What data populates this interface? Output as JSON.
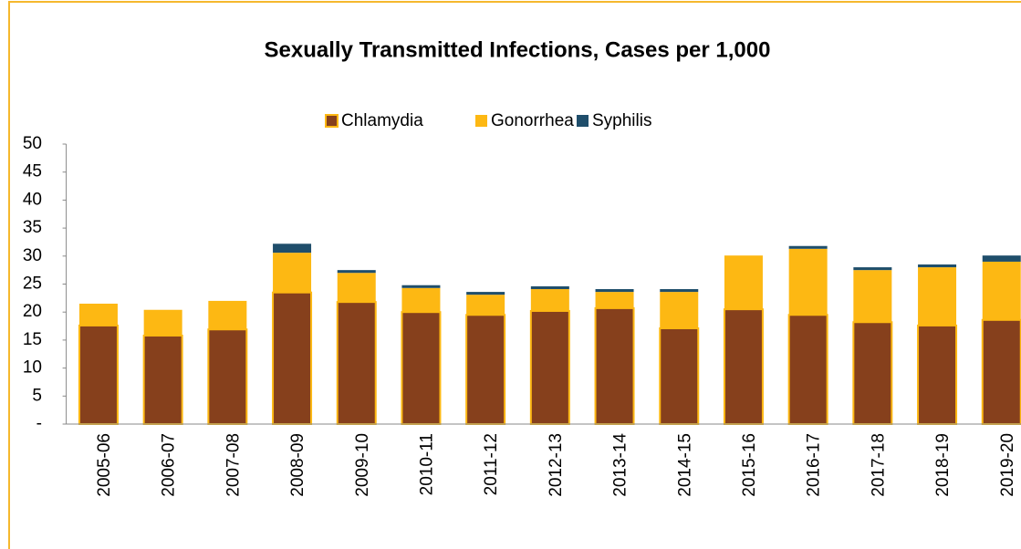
{
  "chart_data": {
    "type": "stacked_bar",
    "title": "Sexually Transmitted Infections, Cases per 1,000",
    "categories": [
      "2005-06",
      "2006-07",
      "2007-08",
      "2008-09",
      "2009-10",
      "2010-11",
      "2011-12",
      "2012-13",
      "2013-14",
      "2014-15",
      "2015-16",
      "2016-17",
      "2017-18",
      "2018-19",
      "2019-20"
    ],
    "series": [
      {
        "name": "Chlamydia",
        "color": "#86401c",
        "values": [
          17.6,
          15.8,
          16.9,
          23.5,
          21.8,
          20.0,
          19.5,
          20.2,
          20.7,
          17.1,
          20.5,
          19.5,
          18.2,
          17.6,
          18.6
        ]
      },
      {
        "name": "Gonorrhea",
        "color": "#fdb813",
        "values": [
          3.9,
          4.6,
          5.1,
          7.1,
          5.2,
          4.3,
          3.6,
          3.9,
          2.9,
          6.5,
          9.6,
          11.8,
          9.3,
          10.4,
          10.4
        ]
      },
      {
        "name": "Syphilis",
        "color": "#1f4e6b",
        "values": [
          0,
          0,
          0,
          1.6,
          0.5,
          0.5,
          0.5,
          0.5,
          0.5,
          0.5,
          0,
          0.5,
          0.5,
          0.5,
          1.1
        ]
      }
    ],
    "ylim": [
      0,
      50
    ],
    "yticks": [
      {
        "value": 0,
        "label": "-"
      },
      5,
      10,
      15,
      20,
      25,
      30,
      35,
      40,
      45,
      50
    ],
    "legend": "top",
    "grid": false
  }
}
